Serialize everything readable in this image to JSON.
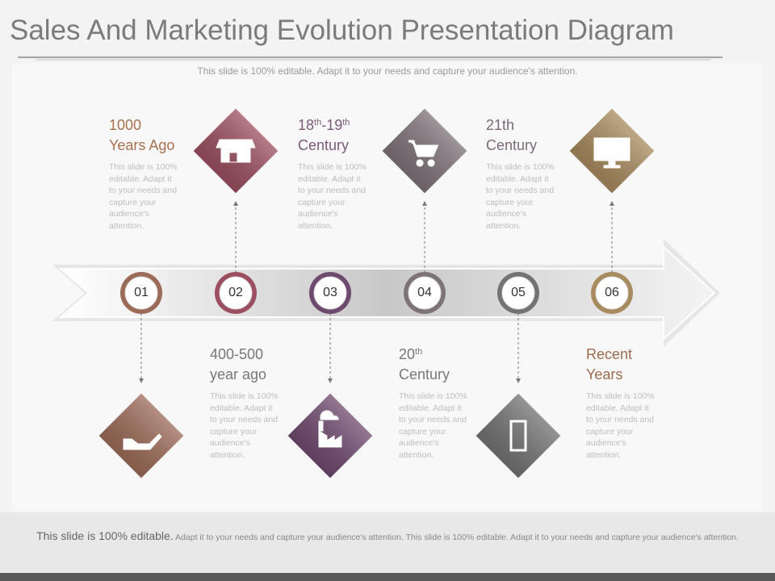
{
  "header": {
    "title": "Sales And Marketing Evolution Presentation Diagram",
    "subtitle": "This slide is 100% editable. Adapt it to your needs and capture your audience's attention."
  },
  "steps": [
    {
      "number": "01",
      "heading": [
        [
          {
            "text": "1000"
          }
        ],
        [
          {
            "text": "Years Ago"
          }
        ]
      ],
      "body": "This slide is 100% editable. Adapt it to your needs and capture your audience's attention."
    },
    {
      "number": "02",
      "heading": [
        [
          {
            "text": "400-500"
          }
        ],
        [
          {
            "text": "year ago"
          }
        ]
      ],
      "body": "This slide is 100% editable. Adapt it to your needs and capture your audience's attention."
    },
    {
      "number": "03",
      "heading": [
        [
          {
            "text": "18"
          },
          {
            "text": "th",
            "sup": true
          },
          {
            "text": "-19"
          },
          {
            "text": "th",
            "sup": true
          }
        ],
        [
          {
            "text": "Century"
          }
        ]
      ],
      "body": "This slide is 100% editable. Adapt it to your needs and capture your audience's attention."
    },
    {
      "number": "04",
      "heading": [
        [
          {
            "text": "20"
          },
          {
            "text": "th",
            "sup": true
          }
        ],
        [
          {
            "text": "Century"
          }
        ]
      ],
      "body": "This slide is 100% editable. Adapt it to your needs and capture your audience's attention."
    },
    {
      "number": "05",
      "heading": [
        [
          {
            "text": "21th"
          }
        ],
        [
          {
            "text": "Century"
          }
        ]
      ],
      "body": "This slide is 100% editable. Adapt it to your needs and capture your audience's attention."
    },
    {
      "number": "06",
      "heading": [
        [
          {
            "text": "Recent"
          }
        ],
        [
          {
            "text": "Years"
          }
        ]
      ],
      "body": "This slide is 100% editable. Adapt it to your needs and capture your audience's attention."
    }
  ],
  "footer": {
    "lead": "This slide is 100% editable.",
    "text": "Adapt it to your needs and capture your audience's attention. This slide is 100% editable. Adapt it to your needs and capture your audience's attention."
  }
}
